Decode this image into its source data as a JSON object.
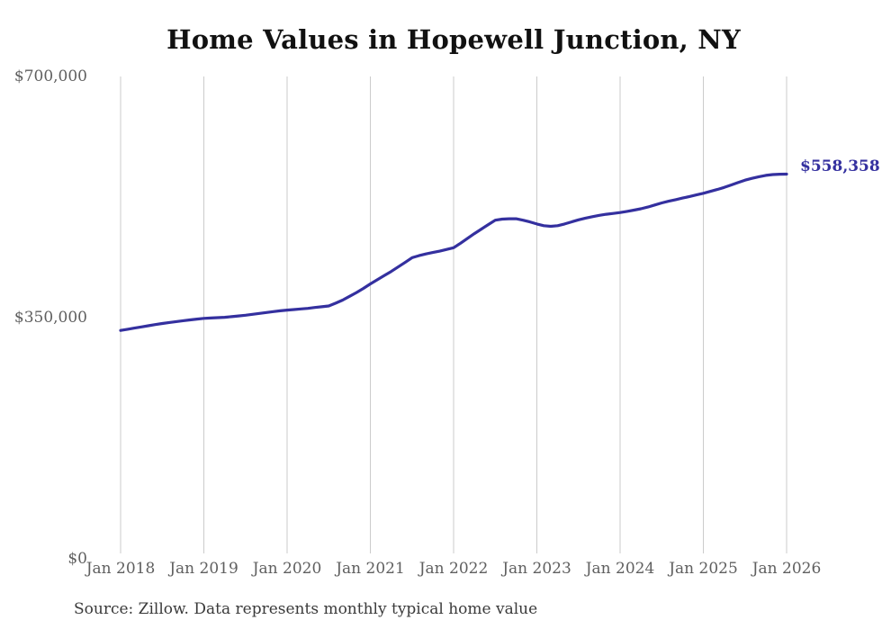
{
  "chart_data": {
    "type": "line",
    "title": "Home Values in Hopewell Junction, NY",
    "source": "Source: Zillow. Data represents monthly typical home value",
    "end_label": "$558,358",
    "end_value": 558358,
    "x_start": "Jan 2018",
    "x_end": "Jan 2026",
    "x_step": "1 month",
    "x_tick_labels": [
      "Jan 2018",
      "Jan 2019",
      "Jan 2020",
      "Jan 2021",
      "Jan 2022",
      "Jan 2023",
      "Jan 2024",
      "Jan 2025",
      "Jan 2026"
    ],
    "y_tick_labels": [
      "$0",
      "$350,000",
      "$700,000"
    ],
    "y_ticks": [
      0,
      350000,
      700000
    ],
    "ylim": [
      0,
      700000
    ],
    "grid": "vertical-only",
    "legend": "none",
    "series": [
      {
        "name": "Typical home value (USD, monthly)",
        "values": [
          331500,
          333200,
          334900,
          336500,
          338200,
          339900,
          341500,
          342900,
          344200,
          345500,
          346700,
          347900,
          349000,
          349500,
          350000,
          350500,
          351500,
          352500,
          353500,
          354800,
          356100,
          357500,
          358700,
          359900,
          361000,
          361800,
          362700,
          363500,
          364700,
          365800,
          367000,
          371000,
          375500,
          381000,
          386500,
          392500,
          399000,
          405000,
          411000,
          417000,
          423500,
          430000,
          437000,
          440000,
          442500,
          444500,
          446500,
          449000,
          451500,
          458000,
          465000,
          472000,
          478500,
          485000,
          491500,
          493000,
          493500,
          493500,
          491500,
          489000,
          486000,
          483500,
          482500,
          483500,
          486000,
          489000,
          492000,
          494500,
          496500,
          498500,
          500000,
          501200,
          502500,
          504200,
          506000,
          508000,
          510500,
          513500,
          516500,
          519000,
          521200,
          523500,
          525800,
          528100,
          530500,
          533200,
          536000,
          539000,
          542500,
          546000,
          549500,
          552200,
          554500,
          556500,
          557700,
          558200,
          558358
        ]
      }
    ]
  },
  "colors": {
    "line": "#34309f",
    "end_label": "#34309f",
    "gridline": "#cbcbcb",
    "tick_label": "#5f5f5f",
    "title": "#111111",
    "source": "#3a3a3a",
    "background": "#ffffff"
  }
}
